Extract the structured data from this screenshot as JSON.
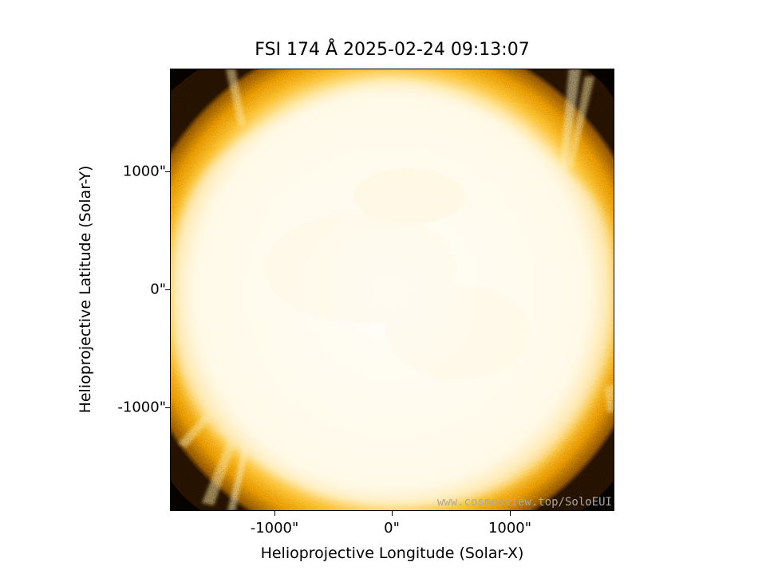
{
  "figure": {
    "title": "FSI 174 Å 2025-02-24 09:13:07",
    "watermark": "www.cosmosview.top/SoloEUI"
  },
  "axes": {
    "xlabel": "Helioprojective Longitude (Solar-X)",
    "ylabel": "Helioprojective Latitude (Solar-Y)",
    "xticks": [
      "-1000\"",
      "0\"",
      "1000\""
    ],
    "yticks": [
      "1000\"",
      "0\"",
      "-1000\""
    ],
    "units": "arcsec"
  },
  "image": {
    "content": "solar-disk-euv",
    "colormap": "solar-orbiter-fsi174",
    "colors": {
      "disk": "#fffdf2",
      "inner_corona": "#ffd878",
      "mid_corona": "#ffb000",
      "outer_corona": "#c07a00",
      "background": "#000000"
    }
  }
}
